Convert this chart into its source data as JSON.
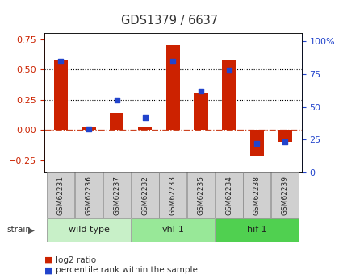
{
  "title": "GDS1379 / 6637",
  "samples": [
    "GSM62231",
    "GSM62236",
    "GSM62237",
    "GSM62232",
    "GSM62233",
    "GSM62235",
    "GSM62234",
    "GSM62238",
    "GSM62239"
  ],
  "log2_ratio": [
    0.58,
    0.02,
    0.14,
    0.03,
    0.7,
    0.31,
    0.58,
    -0.22,
    -0.1
  ],
  "percentile_rank": [
    85,
    33,
    55,
    42,
    85,
    62,
    78,
    22,
    23
  ],
  "groups": [
    {
      "label": "wild type",
      "indices": [
        0,
        1,
        2
      ],
      "color": "#c8f0c8"
    },
    {
      "label": "vhl-1",
      "indices": [
        3,
        4,
        5
      ],
      "color": "#98e898"
    },
    {
      "label": "hif-1",
      "indices": [
        6,
        7,
        8
      ],
      "color": "#50d050"
    }
  ],
  "ylim_left": [
    -0.35,
    0.8
  ],
  "ylim_right": [
    0,
    106
  ],
  "yticks_left": [
    -0.25,
    0.0,
    0.25,
    0.5,
    0.75
  ],
  "yticks_right": [
    0,
    25,
    50,
    75,
    100
  ],
  "hline_dotted": [
    0.25,
    0.5
  ],
  "bar_color": "#cc2200",
  "scatter_color": "#2244cc",
  "bar_width": 0.5,
  "zero_line_color": "#cc4422",
  "bg_color": "#ffffff",
  "plot_bg": "#ffffff",
  "title_color": "#333333",
  "left_axis_color": "#cc2200",
  "right_axis_color": "#2244cc",
  "sample_box_color": "#d0d0d0",
  "strain_label": "strain",
  "legend_log2": "log2 ratio",
  "legend_percentile": "percentile rank within the sample"
}
